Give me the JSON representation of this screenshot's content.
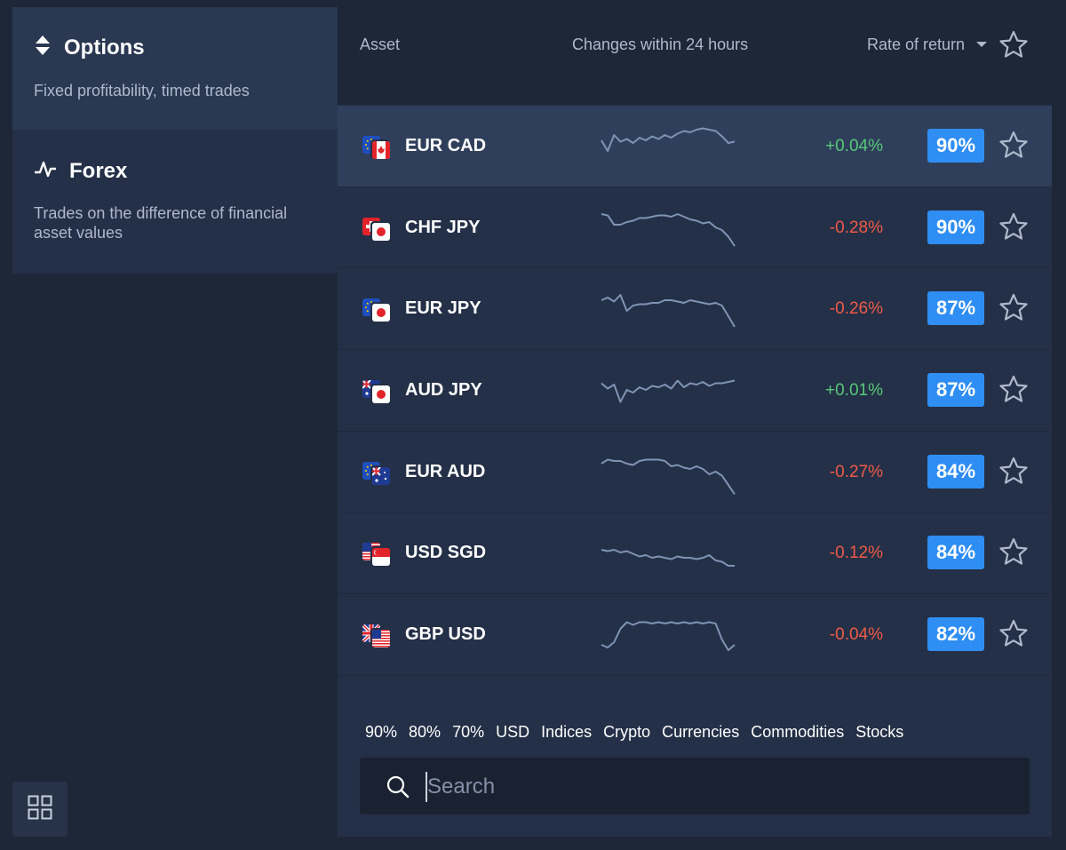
{
  "sidebar": {
    "options": {
      "title": "Options",
      "description": "Fixed profitability, timed trades"
    },
    "forex": {
      "title": "Forex",
      "description": "Trades on the difference of financial asset values"
    }
  },
  "table": {
    "headers": {
      "asset": "Asset",
      "change": "Changes within 24 hours",
      "rate": "Rate of return"
    },
    "rows": [
      {
        "pair": "EUR CAD",
        "change": "+0.04%",
        "direction": "up",
        "rate": "90%",
        "flags": [
          "eu",
          "ca"
        ],
        "spark": [
          10,
          18,
          6,
          11,
          9,
          12,
          8,
          10,
          7,
          9,
          6,
          8,
          5,
          3,
          4,
          2,
          1,
          2,
          3,
          7,
          12,
          11
        ]
      },
      {
        "pair": "CHF JPY",
        "change": "-0.28%",
        "direction": "down",
        "rate": "90%",
        "flags": [
          "ch",
          "jp"
        ],
        "spark": [
          4,
          5,
          12,
          12,
          10,
          9,
          7,
          7,
          6,
          5,
          5,
          6,
          4,
          6,
          8,
          9,
          11,
          10,
          14,
          16,
          21,
          28
        ]
      },
      {
        "pair": "EUR JPY",
        "change": "-0.26%",
        "direction": "down",
        "rate": "87%",
        "flags": [
          "eu",
          "jp"
        ],
        "spark": [
          8,
          6,
          9,
          4,
          16,
          12,
          11,
          11,
          10,
          10,
          8,
          8,
          9,
          10,
          8,
          9,
          10,
          11,
          10,
          12,
          20,
          28
        ]
      },
      {
        "pair": "AUD JPY",
        "change": "+0.01%",
        "direction": "up",
        "rate": "87%",
        "flags": [
          "au",
          "jp"
        ],
        "spark": [
          9,
          13,
          10,
          23,
          14,
          16,
          12,
          14,
          11,
          12,
          10,
          13,
          7,
          12,
          9,
          10,
          8,
          11,
          9,
          9,
          8,
          7
        ]
      },
      {
        "pair": "EUR AUD",
        "change": "-0.27%",
        "direction": "down",
        "rate": "84%",
        "flags": [
          "eu",
          "au"
        ],
        "spark": [
          8,
          5,
          6,
          6,
          8,
          9,
          6,
          5,
          5,
          5,
          6,
          10,
          9,
          11,
          12,
          10,
          12,
          16,
          14,
          17,
          24,
          31
        ]
      },
      {
        "pair": "USD SGD",
        "change": "-0.12%",
        "direction": "down",
        "rate": "84%",
        "flags": [
          "us",
          "sg"
        ],
        "spark": [
          12,
          13,
          12,
          14,
          13,
          15,
          17,
          16,
          18,
          17,
          18,
          19,
          17,
          18,
          18,
          19,
          18,
          16,
          20,
          21,
          24,
          24
        ]
      },
      {
        "pair": "GBP USD",
        "change": "-0.04%",
        "direction": "down",
        "rate": "82%",
        "flags": [
          "gb",
          "us"
        ],
        "spark": [
          22,
          24,
          20,
          10,
          5,
          7,
          5,
          5,
          6,
          5,
          6,
          5,
          6,
          5,
          6,
          5,
          6,
          5,
          6,
          18,
          26,
          22
        ]
      }
    ]
  },
  "filters": [
    "90%",
    "80%",
    "70%",
    "USD",
    "Indices",
    "Crypto",
    "Currencies",
    "Commodities",
    "Stocks"
  ],
  "search": {
    "placeholder": "Search",
    "value": ""
  },
  "colors": {
    "up": "#57c878",
    "down": "#ef5a47",
    "badge": "#2f8ef3",
    "spark": "#7f93b5"
  },
  "icons": {
    "options": "up-down-arrows-icon",
    "forex": "pulse-icon",
    "grid": "grid-icon",
    "star": "star-icon",
    "search": "search-icon",
    "sort": "caret-down-icon"
  }
}
